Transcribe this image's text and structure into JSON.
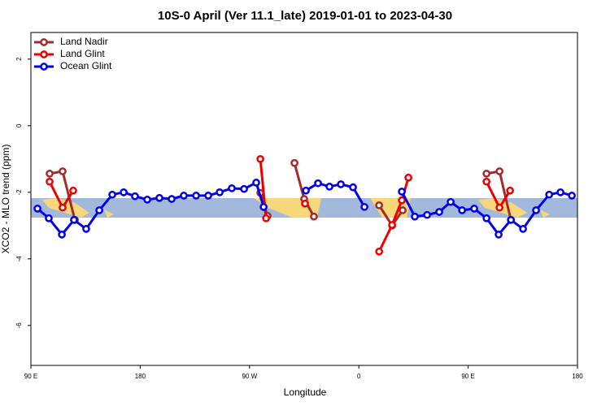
{
  "chart_data": {
    "type": "line",
    "title": "10S-0 April (Ver 11.1_late)   2019-01-01 to 2023-04-30",
    "xlabel": "Longitude",
    "ylabel": "XCO2 - MLO trend (ppm)",
    "xlim": [
      90,
      540
    ],
    "ylim": [
      -7.2,
      2.8
    ],
    "xticks": [
      {
        "value": 90,
        "label": "90 E"
      },
      180,
      {
        "value": 270,
        "label": "90 W"
      },
      {
        "value": 360,
        "label": "0"
      },
      {
        "value": 450,
        "label": "90 E"
      },
      {
        "value": 540,
        "label": "180"
      }
    ],
    "yticks": [
      2,
      0,
      -2,
      -4,
      -6
    ],
    "legend": "top-left",
    "series": [
      {
        "name": "Land Nadir",
        "color": "#a52a2a",
        "x": [
          105.4,
          116.1,
          126.2,
          null,
          278.9,
          284.9,
          null,
          307,
          315,
          323,
          null,
          376.7,
          387.4,
          396.1,
          null,
          465.1,
          475.8,
          485.2
        ],
        "values": [
          -1.44,
          -1.37,
          -2.83,
          null,
          -2.02,
          -2.71,
          null,
          -1.12,
          -2.2,
          -2.73,
          null,
          -2.39,
          -3.0,
          -2.54,
          null,
          -1.44,
          -1.37,
          -2.83
        ]
      },
      {
        "name": "Land Glint",
        "color": "#ee0000",
        "x": [
          105.4,
          116.1,
          124.8,
          null,
          278.9,
          283.6,
          null,
          315.7,
          null,
          376.7,
          387.4,
          395.4,
          400.8,
          null,
          465.1,
          475.8,
          484.5
        ],
        "values": [
          -1.68,
          -2.46,
          -1.95,
          null,
          -1.0,
          -2.78,
          null,
          -2.34,
          null,
          -3.78,
          -2.98,
          -2.24,
          -1.56,
          null,
          -1.68,
          -2.46,
          -1.95
        ]
      },
      {
        "name": "Ocean Glint",
        "color": "#0000ee",
        "x": [
          95.4,
          104.7,
          115.5,
          125.5,
          135.5,
          146.3,
          157,
          166.4,
          175.7,
          185.8,
          195.8,
          205.9,
          215.9,
          226,
          236,
          245.4,
          255.4,
          265.5,
          275.5,
          281.6,
          null,
          316.4,
          326.4,
          335.8,
          345.2,
          355.2,
          364.6,
          null,
          395.4,
          406.1,
          416.2,
          426.2,
          435.6,
          445,
          455,
          465.1,
          475.1,
          485.2,
          495.2,
          505.9,
          516.7,
          526,
          535.4
        ],
        "values": [
          -2.49,
          -2.78,
          -3.27,
          -2.83,
          -3.1,
          -2.54,
          -2.07,
          -2.0,
          -2.12,
          -2.22,
          -2.17,
          -2.2,
          -2.1,
          -2.1,
          -2.1,
          -2.0,
          -1.88,
          -1.9,
          -1.71,
          -2.44,
          null,
          -1.95,
          -1.73,
          -1.83,
          -1.76,
          -1.85,
          -2.44,
          null,
          -1.98,
          -2.73,
          -2.68,
          -2.59,
          -2.29,
          -2.54,
          -2.49,
          -2.78,
          -3.27,
          -2.83,
          -3.1,
          -2.54,
          -2.07,
          -2.0,
          -2.1
        ]
      }
    ]
  }
}
